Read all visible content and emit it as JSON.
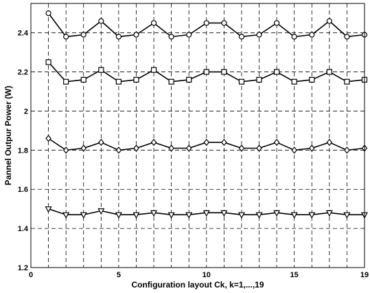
{
  "chart_data": {
    "type": "line",
    "xlabel": "Configuration  layout Ck, k=1,...,19",
    "ylabel": "Pannel Outpur Power (W)",
    "xlim": [
      0,
      19
    ],
    "ylim": [
      1.2,
      2.55
    ],
    "x_ticks": [
      0,
      5,
      10,
      15,
      19
    ],
    "y_ticks": [
      1.2,
      1.4,
      1.6,
      1.8,
      2.0,
      2.2,
      2.4
    ],
    "x_tick_labels": [
      "0",
      "5",
      "10",
      "15",
      "19"
    ],
    "y_tick_labels": [
      "1.2",
      "1.4",
      "1.6",
      "1.8",
      "2",
      "2.2",
      "2.4"
    ],
    "x_grid": [
      1,
      2,
      3,
      4,
      5,
      6,
      7,
      8,
      9,
      10,
      11,
      12,
      13,
      14,
      15,
      16,
      17,
      18,
      19
    ],
    "grid": true,
    "x": [
      1,
      2,
      3,
      4,
      5,
      6,
      7,
      8,
      9,
      10,
      11,
      12,
      13,
      14,
      15,
      16,
      17,
      18,
      19
    ],
    "series": [
      {
        "marker": "circle",
        "values": [
          2.5,
          2.38,
          2.39,
          2.46,
          2.38,
          2.39,
          2.45,
          2.38,
          2.39,
          2.45,
          2.45,
          2.38,
          2.39,
          2.45,
          2.38,
          2.39,
          2.46,
          2.38,
          2.39
        ]
      },
      {
        "marker": "square",
        "values": [
          2.25,
          2.15,
          2.16,
          2.21,
          2.15,
          2.16,
          2.21,
          2.15,
          2.16,
          2.2,
          2.2,
          2.15,
          2.16,
          2.2,
          2.15,
          2.16,
          2.2,
          2.15,
          2.16
        ]
      },
      {
        "marker": "diamond",
        "values": [
          1.86,
          1.8,
          1.81,
          1.84,
          1.8,
          1.81,
          1.84,
          1.81,
          1.81,
          1.84,
          1.84,
          1.81,
          1.81,
          1.84,
          1.8,
          1.81,
          1.84,
          1.8,
          1.81
        ]
      },
      {
        "marker": "triangle-down",
        "values": [
          1.5,
          1.47,
          1.47,
          1.49,
          1.47,
          1.47,
          1.48,
          1.47,
          1.47,
          1.48,
          1.48,
          1.47,
          1.47,
          1.48,
          1.47,
          1.47,
          1.48,
          1.47,
          1.47
        ]
      }
    ]
  }
}
